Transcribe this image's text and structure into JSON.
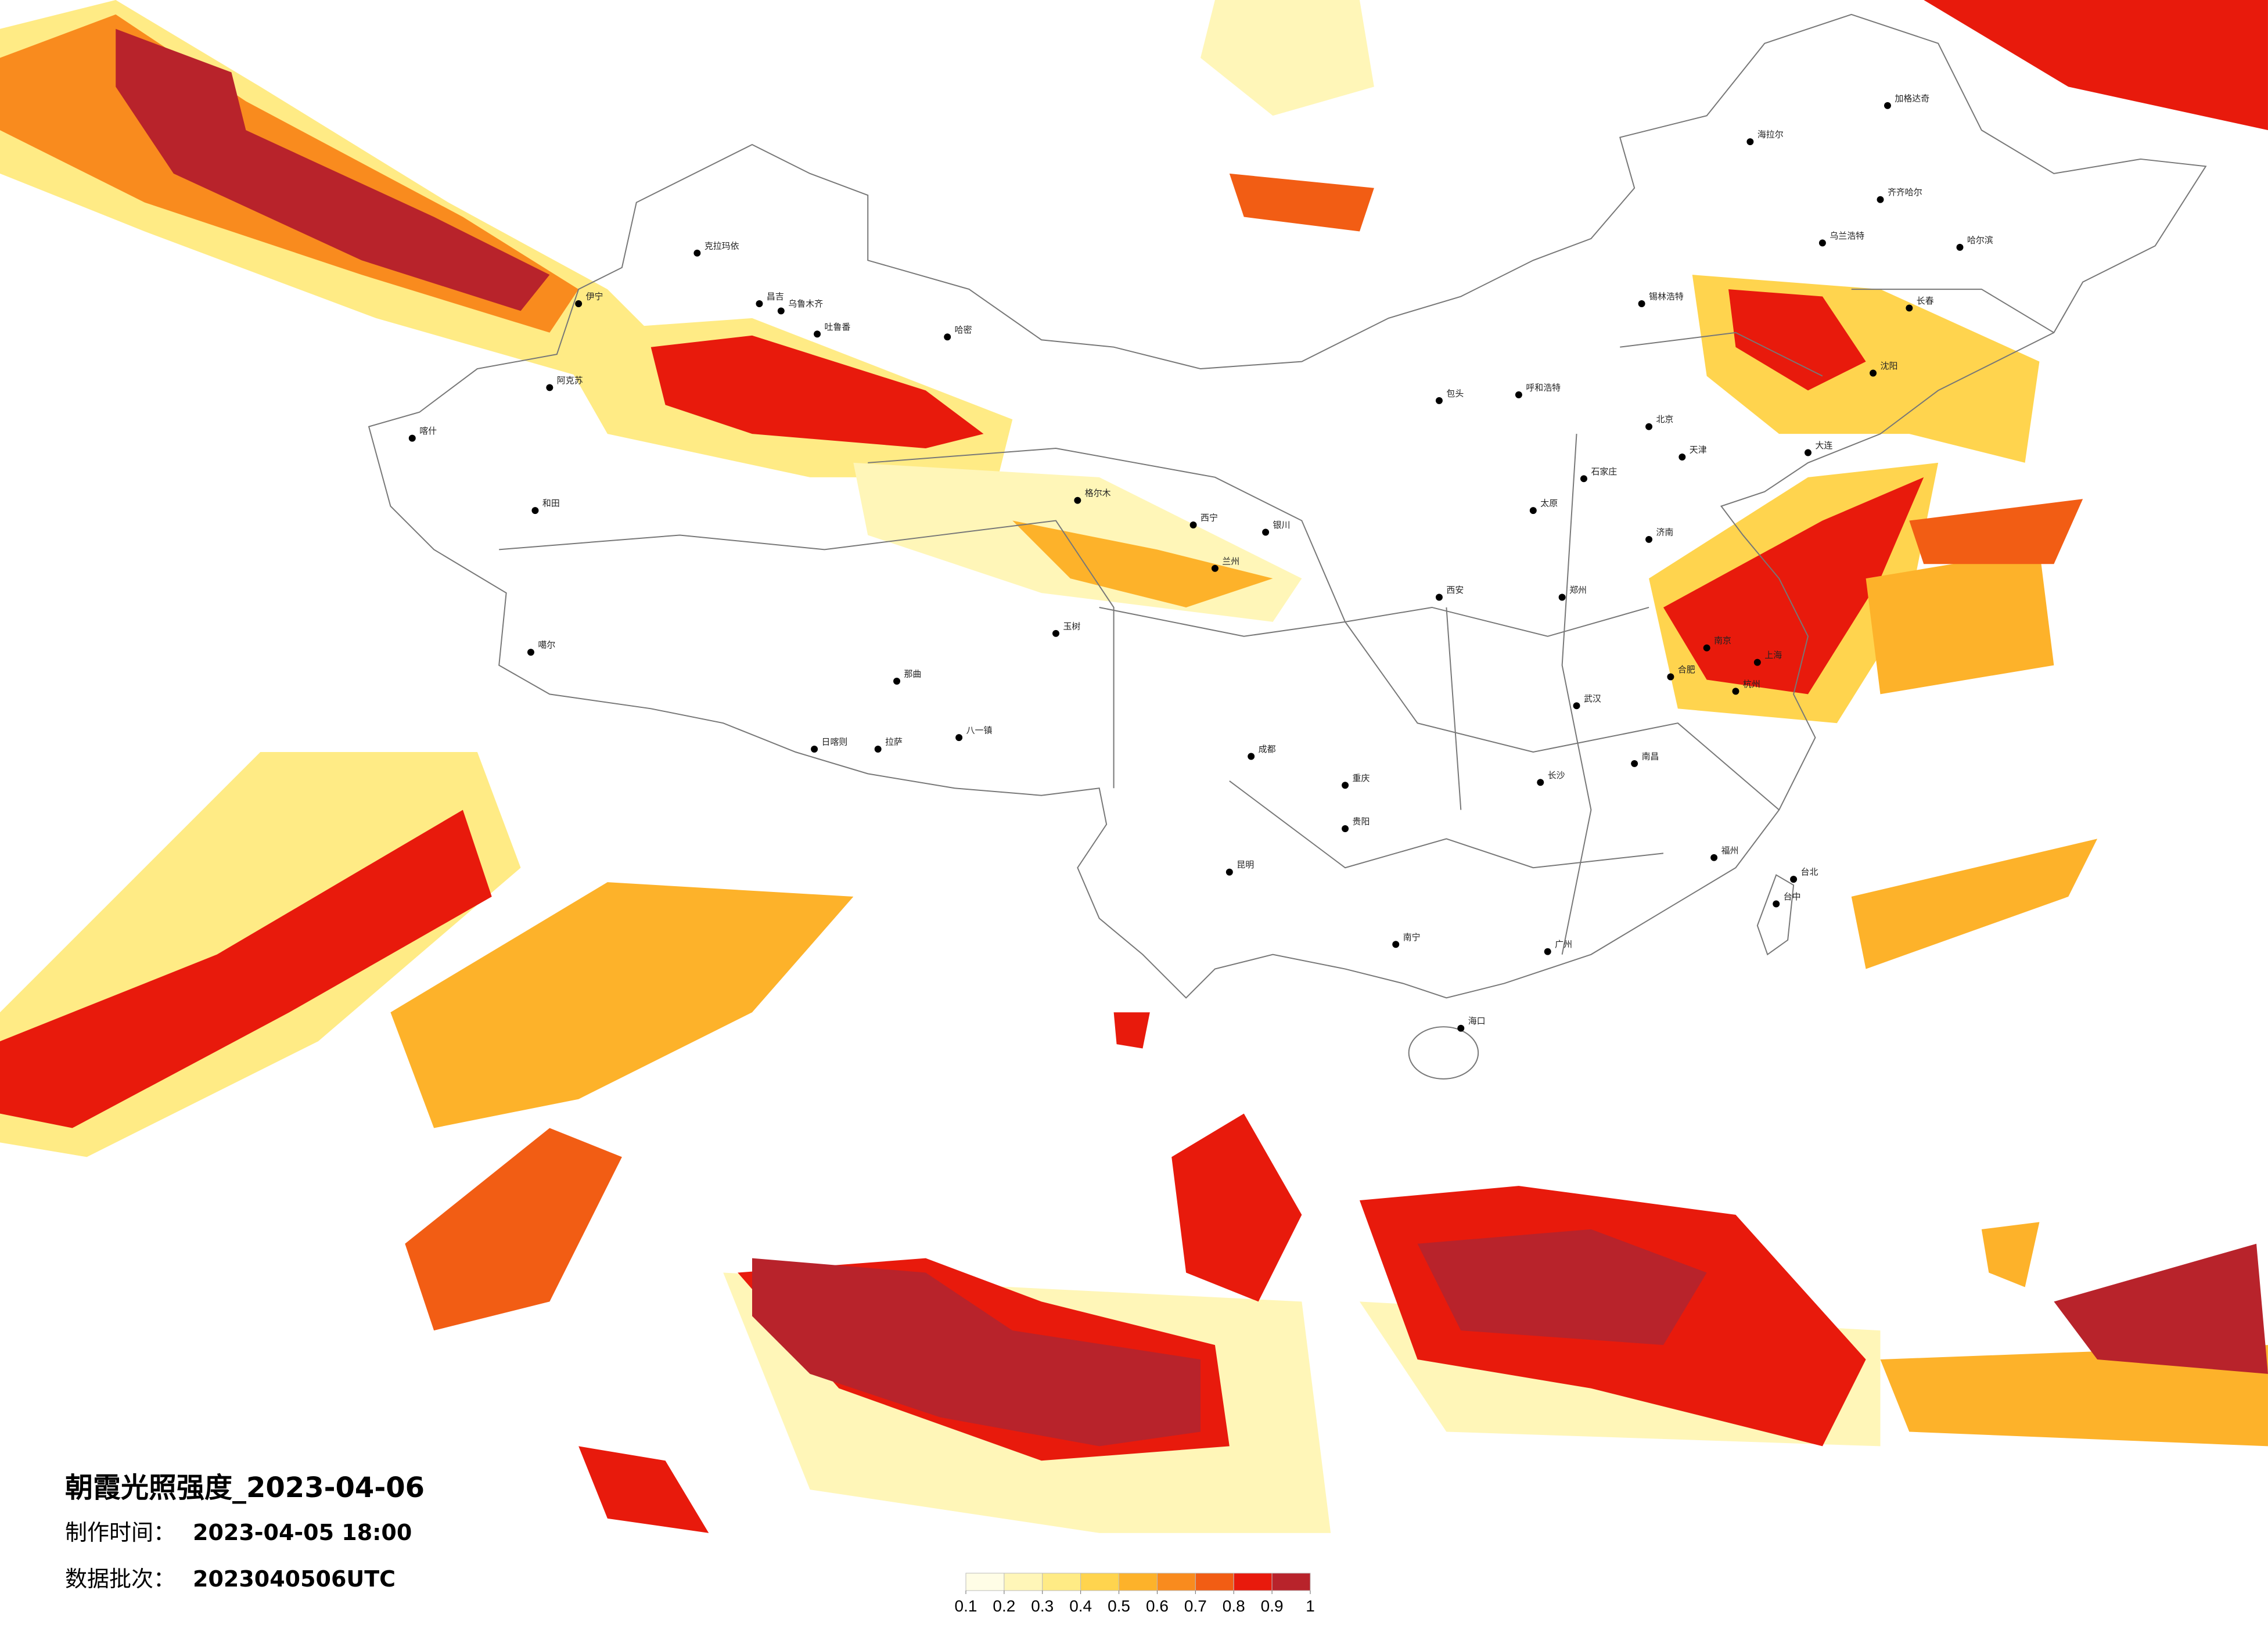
{
  "header": {
    "title": "朝霞光照强度_2023-04-06",
    "made_label": "制作时间：",
    "made_value": "2023-04-05 18:00",
    "batch_label": "数据批次：",
    "batch_value": "2023040506UTC"
  },
  "legend": {
    "ticks": [
      0.1,
      0.2,
      0.3,
      0.4,
      0.5,
      0.6,
      0.7,
      0.8,
      0.9,
      1
    ],
    "colors": [
      "#fffde6",
      "#fff6b8",
      "#ffeb85",
      "#ffd44e",
      "#fdb22a",
      "#f98b1e",
      "#f25d14",
      "#e81a0c",
      "#b8232b"
    ]
  },
  "cities": [
    "克拉玛依",
    "昌吉",
    "乌鲁木齐",
    "吐鲁番",
    "哈密",
    "伊宁",
    "阿克苏",
    "喀什",
    "和田",
    "噶尔",
    "日喀则",
    "拉萨",
    "八一镇",
    "那曲",
    "玉树",
    "格尔木",
    "西宁",
    "兰州",
    "银川",
    "呼和浩特",
    "包头",
    "北京",
    "天津",
    "石家庄",
    "太原",
    "济南",
    "郑州",
    "西安",
    "成都",
    "重庆",
    "贵阳",
    "昆明",
    "南宁",
    "海口",
    "广州",
    "长沙",
    "武汉",
    "南昌",
    "福州",
    "台北",
    "台中",
    "上海",
    "南京",
    "杭州",
    "合肥",
    "哈尔滨",
    "长春",
    "沈阳",
    "大连",
    "齐齐哈尔",
    "海拉尔",
    "加格达奇",
    "锡林浩特",
    "乌兰浩特"
  ]
}
